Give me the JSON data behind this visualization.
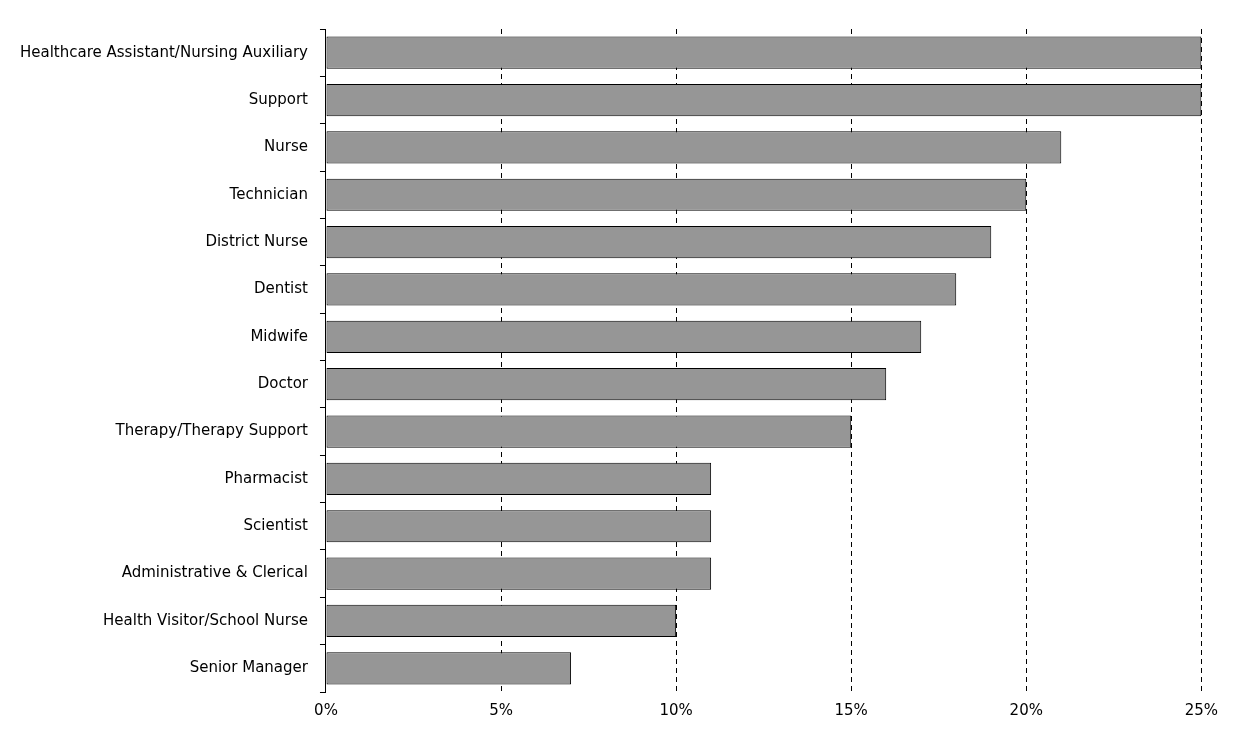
{
  "chart_data": {
    "type": "bar",
    "orientation": "horizontal",
    "categories": [
      "Healthcare Assistant/Nursing Auxiliary",
      "Support",
      "Nurse",
      "Technician",
      "District Nurse",
      "Dentist",
      "Midwife",
      "Doctor",
      "Therapy/Therapy Support",
      "Pharmacist",
      "Scientist",
      "Administrative & Clerical",
      "Health Visitor/School Nurse",
      "Senior Manager"
    ],
    "values": [
      25,
      25,
      21,
      20,
      19,
      18,
      17,
      16,
      15,
      11,
      11,
      11,
      10,
      7
    ],
    "color": "#969696",
    "xlim": [
      0,
      25
    ],
    "xticks": [
      {
        "value": 0,
        "label": "0%"
      },
      {
        "value": 5,
        "label": "5%"
      },
      {
        "value": 10,
        "label": "10%"
      },
      {
        "value": 15,
        "label": "15%"
      },
      {
        "value": 20,
        "label": "20%"
      },
      {
        "value": 25,
        "label": "25%"
      }
    ],
    "grid": "x",
    "legend": false
  }
}
